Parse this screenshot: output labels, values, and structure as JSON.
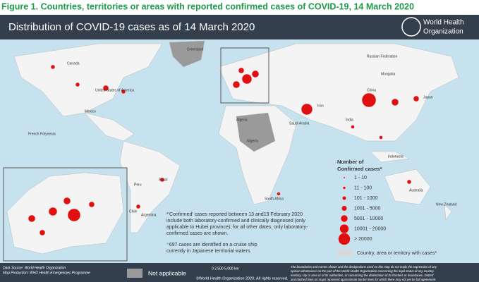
{
  "figure_caption": "Figure 1. Countries, territories or areas with reported confirmed cases of COVID-19, 14 March 2020",
  "header": {
    "title": "Distribution of COVID-19  cases as of 14 March 2020",
    "org_line1": "World Health",
    "org_line2": "Organization"
  },
  "map_labels": [
    "Canada",
    "United States of America",
    "Mexico",
    "Brazil",
    "Peru",
    "Argentina",
    "Chile",
    "Russian Federation",
    "China",
    "Mongolia",
    "India",
    "Iran",
    "Saudi Arabia",
    "Algeria",
    "Nigeria",
    "South Africa",
    "Australia",
    "New Zealand",
    "Japan",
    "Indonesia",
    "Greenland",
    "French Polynesia"
  ],
  "legend": {
    "title_line1": "Number of",
    "title_line2": "Confirmed cases*",
    "classes": [
      "1 - 10",
      "11 - 100",
      "101 - 1000",
      "1001 - 5000",
      "5001 - 10000",
      "10001 - 20000",
      "> 20000"
    ],
    "country_with_cases": "Country, area or territory with cases*"
  },
  "notes": {
    "confirmed": [
      "*'Confirmed' cases reported between 13 and19 February 2020",
      "include both laboratory-confirmed and clinically diagnosed (only",
      "applicable to Hubei province); for all other dates, only laboratory-",
      "confirmed cases are shown."
    ],
    "cruise": [
      "⁺697 cases are identified on a cruise ship",
      "currently in Japanese territorial waters."
    ]
  },
  "footer": {
    "data_source": "Data Source: World Health Organization",
    "map_production": "Map Production: WHO Health Emergencies Programme",
    "not_applicable": "Not applicable",
    "scale": "0     2,500    5,000 km",
    "copyright": "©World Health Organization  2020,  All rights reserved.",
    "disclaimer": [
      "The boundaries and names shown and the designations used on this map do not imply the expression of any",
      "opinion whatsoever on the part of the World Health Organization concerning the legal status of any country,",
      "territory, city or area or of its authorities, or concerning the delimitation of its frontiers or boundaries. Dotted",
      "and dashed lines on maps represent approximate border lines for which there may not yet be full agreement."
    ]
  }
}
